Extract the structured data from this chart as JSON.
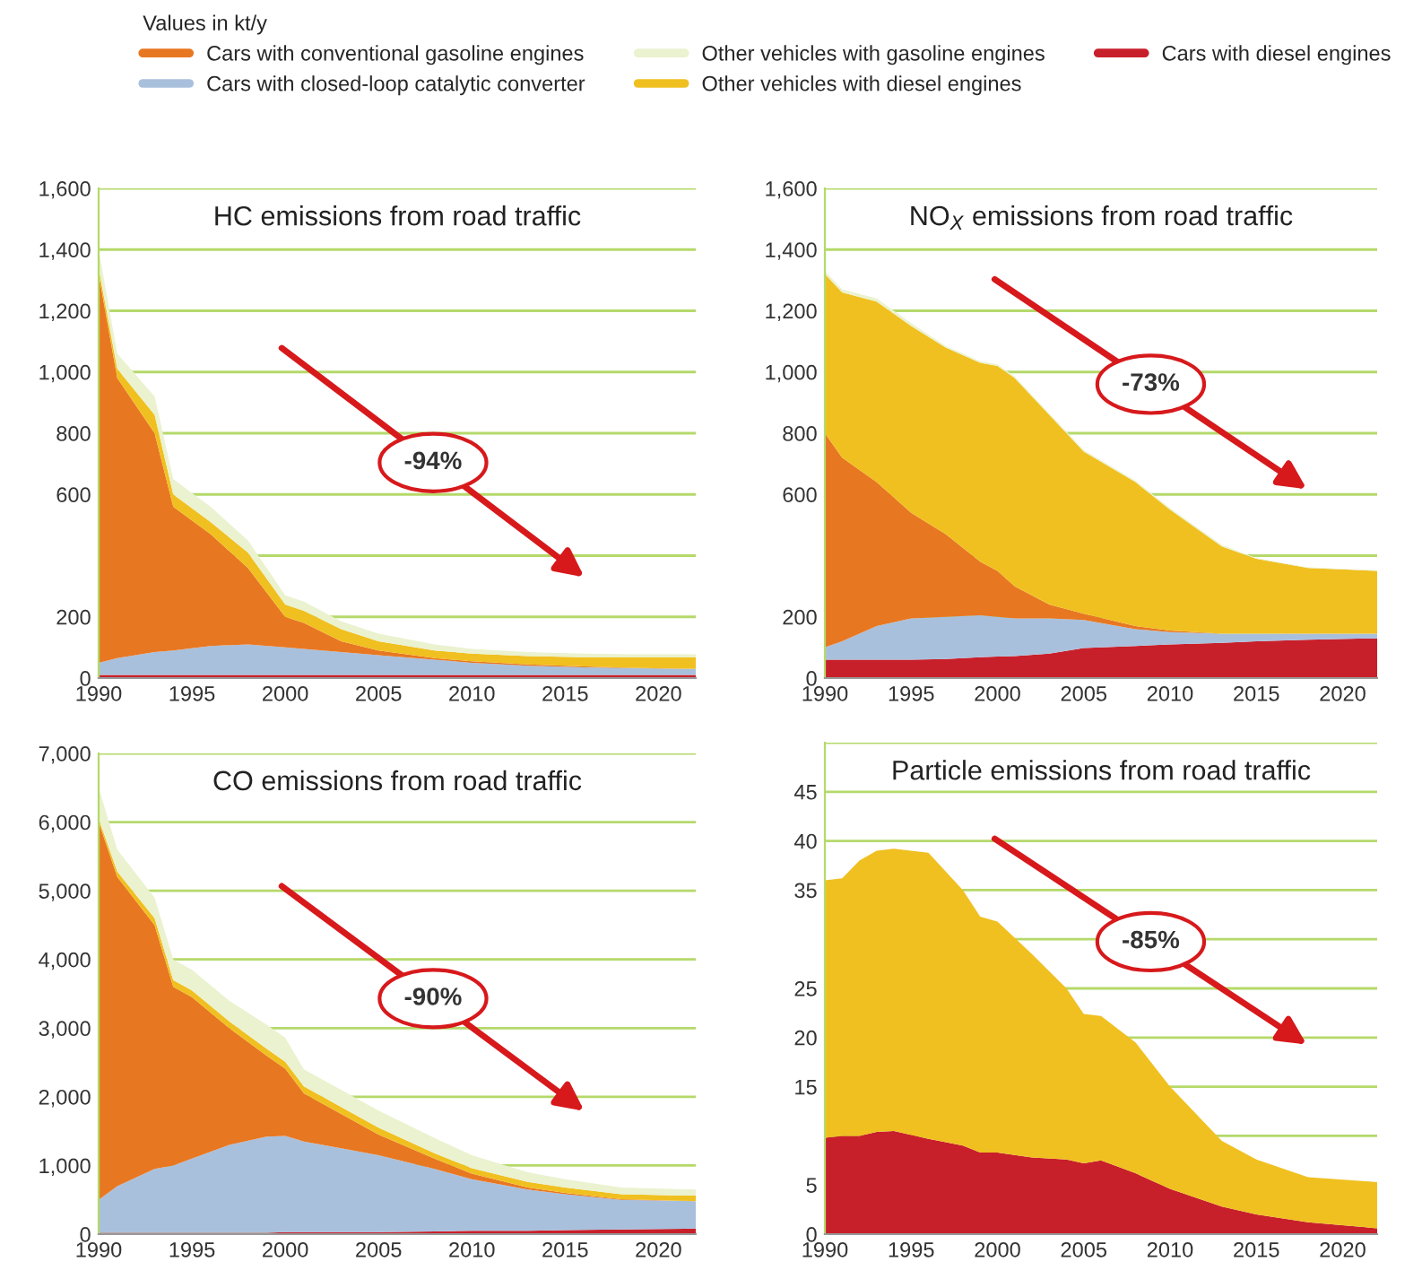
{
  "chart_data": [
    {
      "type": "area",
      "stacked": true,
      "title": "HC emissions from road traffic",
      "legend": "top",
      "legend_title": "Values in kt/y",
      "x": [
        1990,
        1991,
        1993,
        1994,
        1996,
        1998,
        2000,
        2001,
        2003,
        2005,
        2008,
        2010,
        2013,
        2016,
        2019,
        2022
      ],
      "series": [
        {
          "name": "Cars with diesel engines",
          "color": "#c8202a",
          "values": [
            10,
            10,
            10,
            10,
            10,
            10,
            10,
            10,
            10,
            10,
            10,
            10,
            10,
            10,
            10,
            10
          ]
        },
        {
          "name": "Cars with closed-loop catalytic converter",
          "color": "#a9c0dc",
          "values": [
            40,
            55,
            75,
            80,
            95,
            100,
            90,
            85,
            75,
            65,
            50,
            40,
            30,
            25,
            22,
            20
          ]
        },
        {
          "name": "Cars with conventional gasoline engines",
          "color": "#e87722",
          "values": [
            1270,
            915,
            715,
            470,
            365,
            250,
            100,
            85,
            35,
            15,
            5,
            5,
            5,
            3,
            1,
            0
          ]
        },
        {
          "name": "Other vehicles with diesel engines",
          "color": "#f0c020",
          "values": [
            20,
            30,
            60,
            40,
            40,
            50,
            40,
            40,
            40,
            30,
            25,
            25,
            27,
            30,
            35,
            38
          ]
        },
        {
          "name": "Other vehicles with gasoline engines",
          "color": "#eaf2cf",
          "values": [
            60,
            50,
            60,
            50,
            50,
            40,
            30,
            30,
            25,
            25,
            20,
            15,
            13,
            12,
            10,
            10
          ]
        }
      ],
      "xlim": [
        1990,
        2022
      ],
      "xticks": [
        1990,
        1995,
        2000,
        2005,
        2010,
        2015,
        2020
      ],
      "ylim": [
        0,
        1600
      ],
      "yticks": [
        0,
        200,
        {
          "value": 400,
          "label": null
        },
        600,
        800,
        {
          "value": 1000,
          "label": "1,000"
        },
        {
          "value": 1200,
          "label": "1,200"
        },
        {
          "value": 1400,
          "label": "1,400"
        },
        {
          "value": 1600,
          "label": "1,600"
        }
      ],
      "grid": "y",
      "annotations": [
        "-94%"
      ]
    },
    {
      "type": "area",
      "stacked": true,
      "title": "NO$_{X}$ emissions from road traffic",
      "x": [
        1990,
        1991,
        1993,
        1995,
        1997,
        1999,
        2000,
        2001,
        2003,
        2005,
        2008,
        2010,
        2013,
        2015,
        2018,
        2022
      ],
      "series": [
        {
          "color": "#c8202a",
          "values": [
            60,
            60,
            60,
            60,
            62,
            68,
            70,
            72,
            80,
            98,
            105,
            110,
            115,
            120,
            125,
            130
          ]
        },
        {
          "color": "#a9c0dc",
          "values": [
            40,
            60,
            110,
            135,
            138,
            137,
            130,
            123,
            115,
            92,
            55,
            40,
            30,
            25,
            20,
            15
          ]
        },
        {
          "color": "#e87722",
          "values": [
            700,
            600,
            470,
            345,
            270,
            175,
            150,
            105,
            45,
            20,
            10,
            5,
            0,
            0,
            0,
            0
          ]
        },
        {
          "color": "#f0c020",
          "values": [
            520,
            540,
            590,
            610,
            610,
            650,
            670,
            680,
            620,
            530,
            470,
            395,
            285,
            245,
            215,
            205
          ]
        },
        {
          "color": "#eaf2cf",
          "values": [
            10,
            10,
            10,
            10,
            5,
            5,
            5,
            5,
            5,
            5,
            5,
            5,
            5,
            2,
            2,
            2
          ]
        }
      ],
      "xlim": [
        1990,
        2022
      ],
      "xticks": [
        1990,
        1995,
        2000,
        2005,
        2010,
        2015,
        2020
      ],
      "ylim": [
        0,
        1600
      ],
      "yticks": [
        0,
        200,
        {
          "value": 400,
          "label": null
        },
        600,
        800,
        {
          "value": 1000,
          "label": "1,000"
        },
        {
          "value": 1200,
          "label": "1,200"
        },
        {
          "value": 1400,
          "label": "1,400"
        },
        {
          "value": 1600,
          "label": "1,600"
        }
      ],
      "grid": "y",
      "annotations": [
        "-73%"
      ]
    },
    {
      "type": "area",
      "stacked": true,
      "title": "CO emissions from road traffic",
      "x": [
        1990,
        1991,
        1993,
        1994,
        1995,
        1997,
        1999,
        2000,
        2001,
        2003,
        2005,
        2008,
        2010,
        2013,
        2015,
        2018,
        2022
      ],
      "series": [
        {
          "color": "#c8202a",
          "values": [
            20,
            20,
            20,
            20,
            20,
            20,
            20,
            30,
            30,
            30,
            30,
            40,
            50,
            50,
            60,
            70,
            80
          ]
        },
        {
          "color": "#a9c0dc",
          "values": [
            480,
            680,
            930,
            980,
            1080,
            1280,
            1400,
            1400,
            1320,
            1220,
            1120,
            910,
            750,
            600,
            520,
            430,
            400
          ]
        },
        {
          "color": "#e87722",
          "values": [
            5500,
            4500,
            3550,
            2600,
            2350,
            1700,
            1180,
            980,
            700,
            500,
            300,
            150,
            80,
            30,
            20,
            10,
            0
          ]
        },
        {
          "color": "#f0c020",
          "values": [
            50,
            80,
            100,
            100,
            100,
            100,
            100,
            100,
            100,
            100,
            100,
            80,
            80,
            80,
            80,
            70,
            80
          ]
        },
        {
          "color": "#eaf2cf",
          "values": [
            450,
            320,
            300,
            300,
            300,
            300,
            350,
            350,
            250,
            250,
            250,
            220,
            190,
            140,
            120,
            100,
            90
          ]
        }
      ],
      "xlim": [
        1990,
        2022
      ],
      "xticks": [
        1990,
        1995,
        2000,
        2005,
        2010,
        2015,
        2020
      ],
      "ylim": [
        0,
        7000
      ],
      "yticks": [
        0,
        {
          "value": 1000,
          "label": "1,000"
        },
        {
          "value": 2000,
          "label": "2,000"
        },
        {
          "value": 3000,
          "label": "3,000"
        },
        {
          "value": 4000,
          "label": "4,000"
        },
        {
          "value": 5000,
          "label": "5,000"
        },
        {
          "value": 6000,
          "label": "6,000"
        },
        {
          "value": 7000,
          "label": "7,000"
        }
      ],
      "grid": "y",
      "annotations": [
        "-90%"
      ]
    },
    {
      "type": "area",
      "stacked": true,
      "title": "Particle emissions from road traffic",
      "x": [
        1990,
        1991,
        1992,
        1993,
        1994,
        1996,
        1998,
        1999,
        2000,
        2002,
        2004,
        2005,
        2006,
        2008,
        2010,
        2013,
        2015,
        2018,
        2022
      ],
      "series": [
        {
          "color": "#c8202a",
          "values": [
            9.8,
            10,
            10,
            10.4,
            10.5,
            9.7,
            9.0,
            8.3,
            8.3,
            7.8,
            7.6,
            7.2,
            7.5,
            6.2,
            4.6,
            2.8,
            2.0,
            1.2,
            0.6
          ]
        },
        {
          "color": "#f0c020",
          "values": [
            26.2,
            26.2,
            28,
            28.6,
            28.7,
            29.1,
            26,
            24,
            23.5,
            20.7,
            17.4,
            15.2,
            14.7,
            13.3,
            10.4,
            6.7,
            5.6,
            4.6,
            4.7
          ]
        }
      ],
      "xlim": [
        1990,
        2022
      ],
      "xticks": [
        1990,
        1995,
        2000,
        2005,
        2010,
        2015,
        2020
      ],
      "ylim": [
        0,
        50
      ],
      "yticks": [
        0,
        5,
        {
          "value": 10,
          "label": null
        },
        15,
        20,
        25,
        {
          "value": 30,
          "label": null
        },
        35,
        40,
        45,
        {
          "value": 50,
          "label": null
        }
      ],
      "grid": "y",
      "annotations": [
        "-85%"
      ]
    }
  ]
}
